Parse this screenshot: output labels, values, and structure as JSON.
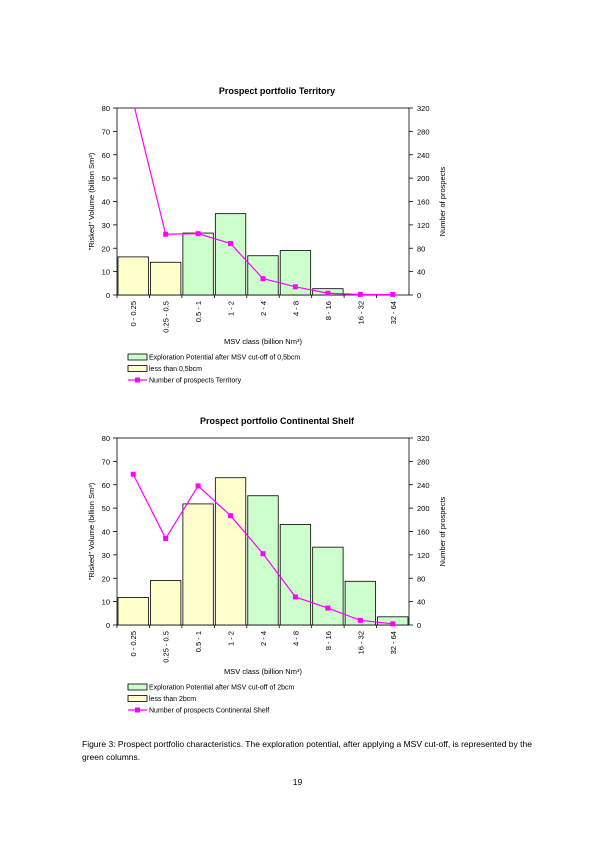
{
  "colors": {
    "exploration": "#ccffcc",
    "small": "#ffffcc",
    "prospects": "#ff00ff",
    "axis": "#000000"
  },
  "chart_data": [
    {
      "type": "bar",
      "title": "Prospect portfolio Territory",
      "xlabel": "MSV class (billion Nm³)",
      "ylabel": "\"Risked\" Volume (billion Sm³)",
      "y2label": "Number of prospects",
      "categories": [
        "0 - 0.25",
        "0.25 - 0.5",
        "0.5 - 1",
        "1 - 2",
        "2 - 4",
        "4 - 8",
        "8 - 16",
        "16 - 32",
        "32 - 64"
      ],
      "ylim": [
        0,
        80
      ],
      "y2lim": [
        0,
        320
      ],
      "yticks": [
        0,
        10,
        20,
        30,
        40,
        50,
        60,
        70,
        80
      ],
      "y2ticks": [
        0,
        40,
        80,
        120,
        160,
        200,
        240,
        280,
        320
      ],
      "series": [
        {
          "name": "less than 0,5bcm",
          "kind": "bar",
          "color": "#ffffcc",
          "values": [
            16.3,
            14,
            null,
            null,
            null,
            null,
            null,
            null,
            null
          ]
        },
        {
          "name": "Exploration Potential after MSV cut-off of 0,5bcm",
          "kind": "bar",
          "color": "#ccffcc",
          "values": [
            null,
            null,
            26.5,
            34.8,
            16.8,
            19,
            2.7,
            0,
            0
          ]
        },
        {
          "name": "Number of prospects Territory",
          "kind": "line",
          "axis": "right",
          "color": "#ff00ff",
          "values": [
            330,
            104,
            105,
            88,
            28,
            14,
            3,
            1,
            1
          ]
        }
      ],
      "legend": [
        {
          "label": "Exploration Potential after MSV cut-off of 0,5bcm",
          "type": "box",
          "color": "#ccffcc"
        },
        {
          "label": "less than 0,5bcm",
          "type": "box",
          "color": "#ffffcc"
        },
        {
          "label": "Number of prospects Territory",
          "type": "line",
          "color": "#ff00ff"
        }
      ],
      "legend_position": "bottom-left"
    },
    {
      "type": "bar",
      "title": "Prospect portfolio Continental Shelf",
      "xlabel": "MSV class (billion Nm³)",
      "ylabel": "\"Risked\" Volume (billion Sm³)",
      "y2label": "Number of prospects",
      "categories": [
        "0 - 0.25",
        "0.25 - 0.5",
        "0.5 - 1",
        "1 - 2",
        "2 - 4",
        "4 - 8",
        "8 - 16",
        "16 - 32",
        "32 - 64"
      ],
      "ylim": [
        0,
        80
      ],
      "y2lim": [
        0,
        320
      ],
      "yticks": [
        0,
        10,
        20,
        30,
        40,
        50,
        60,
        70,
        80
      ],
      "y2ticks": [
        0,
        40,
        80,
        120,
        160,
        200,
        240,
        280,
        320
      ],
      "series": [
        {
          "name": "less than 2bcm",
          "kind": "bar",
          "color": "#ffffcc",
          "values": [
            11.8,
            19,
            51.8,
            63,
            null,
            null,
            null,
            null,
            null
          ]
        },
        {
          "name": "Exploration Potential after MSV cut-off of 2bcm",
          "kind": "bar",
          "color": "#ccffcc",
          "values": [
            null,
            null,
            null,
            null,
            55.3,
            43,
            33.3,
            18.7,
            3.5
          ]
        },
        {
          "name": "Number of prospects Continental Shelf",
          "kind": "line",
          "axis": "right",
          "color": "#ff00ff",
          "values": [
            258,
            148,
            238,
            187,
            122,
            48,
            29,
            8,
            2
          ]
        }
      ],
      "legend": [
        {
          "label": "Exploration Potential after MSV cut-off of 2bcm",
          "type": "box",
          "color": "#ccffcc"
        },
        {
          "label": "less than 2bcm",
          "type": "box",
          "color": "#ffffcc"
        },
        {
          "label": "Number of prospects Continental Shelf",
          "type": "line",
          "color": "#ff00ff"
        }
      ],
      "legend_position": "bottom-left"
    }
  ],
  "caption": "Figure 3: Prospect portfolio characteristics. The exploration potential, after applying a MSV cut-off, is represented by the green columns.",
  "page_number": "19"
}
